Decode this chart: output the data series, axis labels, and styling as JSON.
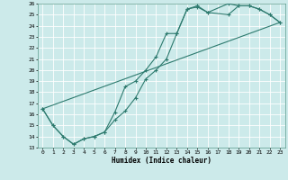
{
  "xlabel": "Humidex (Indice chaleur)",
  "bg_color": "#cceaea",
  "line_color": "#2d7a6e",
  "grid_color": "#b8d8d8",
  "xlim": [
    -0.5,
    23.5
  ],
  "ylim": [
    13,
    26
  ],
  "xticks": [
    0,
    1,
    2,
    3,
    4,
    5,
    6,
    7,
    8,
    9,
    10,
    11,
    12,
    13,
    14,
    15,
    16,
    17,
    18,
    19,
    20,
    21,
    22,
    23
  ],
  "yticks": [
    13,
    14,
    15,
    16,
    17,
    18,
    19,
    20,
    21,
    22,
    23,
    24,
    25,
    26
  ],
  "line1_x": [
    0,
    1,
    2,
    3,
    4,
    5,
    6,
    7,
    8,
    9,
    10,
    11,
    12,
    13,
    14,
    15,
    16,
    18,
    19,
    20,
    21,
    22,
    23
  ],
  "line1_y": [
    16.5,
    15.0,
    14.0,
    13.3,
    13.8,
    14.0,
    14.4,
    15.5,
    16.3,
    17.5,
    19.2,
    20.0,
    21.0,
    23.3,
    25.5,
    25.7,
    25.2,
    26.0,
    25.8,
    25.8,
    25.5,
    25.0,
    24.3
  ],
  "line2_x": [
    0,
    1,
    2,
    3,
    4,
    5,
    6,
    7,
    8,
    9,
    10,
    11,
    12,
    13,
    14,
    15,
    16,
    18,
    19,
    20,
    21,
    22,
    23
  ],
  "line2_y": [
    16.5,
    15.0,
    14.0,
    13.3,
    13.8,
    14.0,
    14.4,
    16.2,
    18.5,
    19.0,
    20.0,
    21.2,
    23.3,
    23.3,
    25.5,
    25.8,
    25.2,
    25.0,
    25.8,
    25.8,
    25.5,
    25.0,
    24.3
  ],
  "line3_x": [
    0,
    23
  ],
  "line3_y": [
    16.5,
    24.3
  ]
}
